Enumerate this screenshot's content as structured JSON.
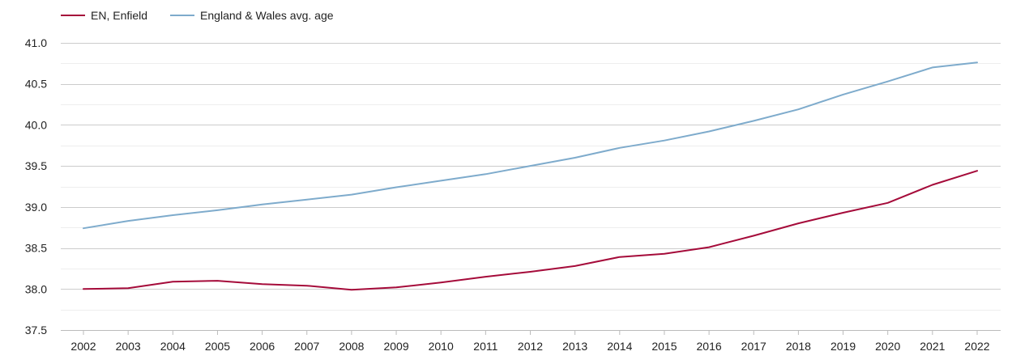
{
  "chart_data": {
    "type": "line",
    "title": "",
    "xlabel": "",
    "ylabel": "",
    "categories": [
      "2002",
      "2003",
      "2004",
      "2005",
      "2006",
      "2007",
      "2008",
      "2009",
      "2010",
      "2011",
      "2012",
      "2013",
      "2014",
      "2015",
      "2016",
      "2017",
      "2018",
      "2019",
      "2020",
      "2021",
      "2022"
    ],
    "ylim": [
      37.5,
      41.0
    ],
    "yticks": [
      "37.5",
      "38.0",
      "38.5",
      "39.0",
      "39.5",
      "40.0",
      "40.5",
      "41.0"
    ],
    "grid": true,
    "legend_position": "top-left",
    "series": [
      {
        "name": "EN, Enfield",
        "color": "#a50b3a",
        "values": [
          38.0,
          38.01,
          38.09,
          38.1,
          38.06,
          38.04,
          37.99,
          38.02,
          38.08,
          38.15,
          38.21,
          38.28,
          38.39,
          38.43,
          38.51,
          38.65,
          38.8,
          38.93,
          39.05,
          39.27,
          39.44
        ]
      },
      {
        "name": "England & Wales avg. age",
        "color": "#7eabcc",
        "values": [
          38.74,
          38.83,
          38.9,
          38.96,
          39.03,
          39.09,
          39.15,
          39.24,
          39.32,
          39.4,
          39.5,
          39.6,
          39.72,
          39.81,
          39.92,
          40.05,
          40.19,
          40.37,
          40.53,
          40.7,
          40.76
        ]
      }
    ]
  }
}
